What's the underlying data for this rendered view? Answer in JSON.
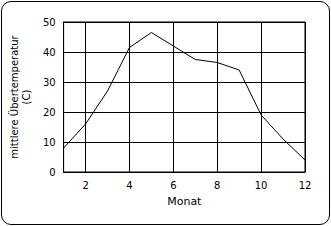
{
  "chart_data": {
    "type": "line",
    "x": [
      1,
      2,
      3,
      4,
      5,
      6,
      7,
      8,
      9,
      10,
      11,
      12
    ],
    "values": [
      8,
      16,
      27,
      41.5,
      46.5,
      42,
      37.5,
      36.5,
      34,
      19,
      11,
      4
    ],
    "color": "#000000",
    "x_label": "Monat",
    "y_label": "mittlere Übertemperatur\n(C)",
    "xlim": [
      1,
      12
    ],
    "xticks": [
      2,
      4,
      6,
      8,
      10,
      12
    ],
    "ylim": [
      0,
      50
    ],
    "yticks": [
      0,
      10,
      20,
      30,
      40,
      50
    ],
    "grid": true
  }
}
